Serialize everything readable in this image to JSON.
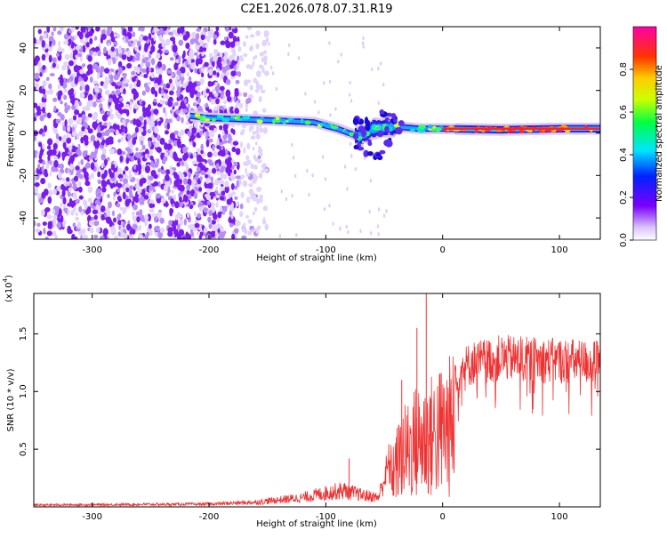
{
  "title": "C2E1.2026.078.07.31.R19",
  "chart_data": [
    {
      "type": "heatmap",
      "xlabel": "Height of straight line (km)",
      "ylabel": "Frequency (Hz)",
      "xlim": [
        -350,
        135
      ],
      "ylim": [
        -50,
        50
      ],
      "xticks": [
        -300,
        -200,
        -100,
        0,
        100
      ],
      "xtick_labels": [
        "-300",
        "-200",
        "-100",
        "0",
        "100"
      ],
      "yticks": [
        -40,
        -20,
        0,
        20,
        40
      ],
      "ytick_labels": [
        "-40",
        "-20",
        "0",
        "20",
        "40"
      ],
      "colorbar": {
        "label": "Normalized spectral amplitude",
        "range": [
          0,
          1
        ],
        "ticks": [
          0.0,
          0.2,
          0.4,
          0.6,
          0.8
        ],
        "tick_labels": [
          "0.0",
          "0.2",
          "0.4",
          "0.6",
          "0.8"
        ]
      },
      "ridge": [
        {
          "x": -215,
          "freq": 8
        },
        {
          "x": -200,
          "freq": 7
        },
        {
          "x": -150,
          "freq": 6
        },
        {
          "x": -110,
          "freq": 5
        },
        {
          "x": -90,
          "freq": 2
        },
        {
          "x": -70,
          "freq": -2
        },
        {
          "x": -60,
          "freq": 2
        },
        {
          "x": -40,
          "freq": 3
        },
        {
          "x": -20,
          "freq": 2
        },
        {
          "x": 0,
          "freq": 2
        },
        {
          "x": 50,
          "freq": 1.5
        },
        {
          "x": 100,
          "freq": 2
        },
        {
          "x": 135,
          "freq": 2
        }
      ]
    },
    {
      "type": "line",
      "xlabel": "Height of straight line (km)",
      "ylabel": "SNR (10 * v/v)",
      "y_scale_label": "(x10",
      "y_scale_exp": "4",
      "y_scale_close": ")",
      "xlim": [
        -350,
        135
      ],
      "ylim": [
        0,
        1.85
      ],
      "xticks": [
        -300,
        -200,
        -100,
        0,
        100
      ],
      "xtick_labels": [
        "-300",
        "-200",
        "-100",
        "0",
        "100"
      ],
      "yticks": [
        0.5,
        1.0,
        1.5
      ],
      "ytick_labels": [
        "0.5",
        "1.0",
        "1.5"
      ],
      "color": "#ee3333",
      "envelope": [
        {
          "x": -350,
          "y": 0.02
        },
        {
          "x": -200,
          "y": 0.03
        },
        {
          "x": -160,
          "y": 0.05
        },
        {
          "x": -120,
          "y": 0.1
        },
        {
          "x": -100,
          "y": 0.15
        },
        {
          "x": -85,
          "y": 0.18
        },
        {
          "x": -70,
          "y": 0.13
        },
        {
          "x": -55,
          "y": 0.1
        },
        {
          "x": -45,
          "y": 0.5
        },
        {
          "x": -35,
          "y": 0.8
        },
        {
          "x": -25,
          "y": 1.0
        },
        {
          "x": -10,
          "y": 1.1
        },
        {
          "x": 0,
          "y": 1.2
        },
        {
          "x": 10,
          "y": 1.3
        },
        {
          "x": 25,
          "y": 1.4
        },
        {
          "x": 50,
          "y": 1.45
        },
        {
          "x": 80,
          "y": 1.43
        },
        {
          "x": 110,
          "y": 1.42
        },
        {
          "x": 135,
          "y": 1.4
        }
      ],
      "spikes": [
        {
          "x": -14,
          "y": 1.85
        },
        {
          "x": -22,
          "y": 1.55
        },
        {
          "x": -80,
          "y": 0.42
        },
        {
          "x": -35,
          "y": 1.1
        }
      ]
    }
  ]
}
